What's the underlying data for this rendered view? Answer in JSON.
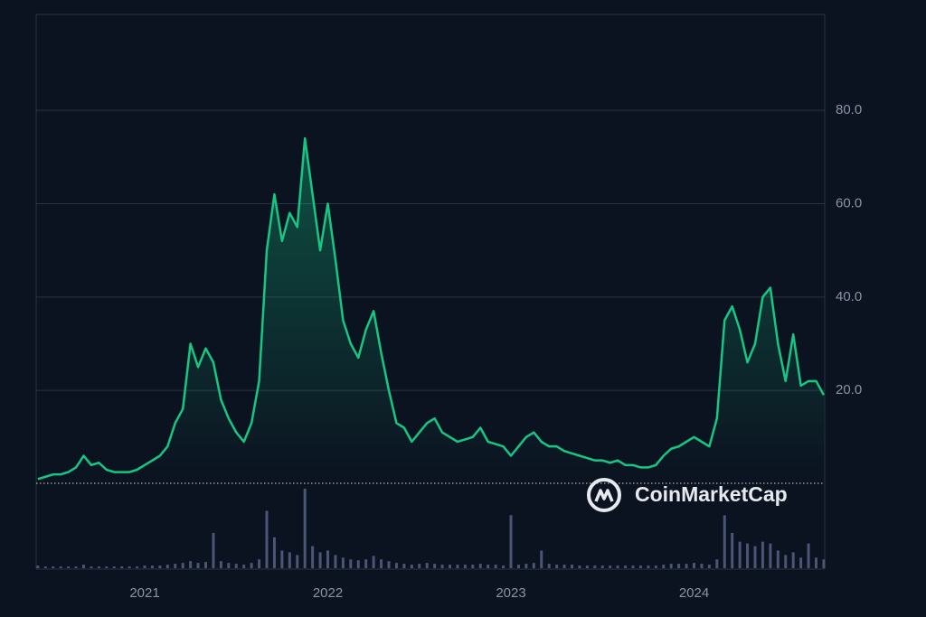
{
  "chart_data": {
    "type": "line",
    "watermark": "CoinMarketCap",
    "categories": [
      null,
      null,
      null,
      null,
      null,
      null,
      null,
      null,
      null,
      null,
      null,
      null,
      null,
      null,
      "2021",
      null,
      null,
      null,
      null,
      null,
      null,
      null,
      null,
      null,
      null,
      null,
      null,
      null,
      null,
      null,
      null,
      null,
      null,
      null,
      null,
      null,
      null,
      null,
      "2022",
      null,
      null,
      null,
      null,
      null,
      null,
      null,
      null,
      null,
      null,
      null,
      null,
      null,
      null,
      null,
      null,
      null,
      null,
      null,
      null,
      null,
      null,
      null,
      "2023",
      null,
      null,
      null,
      null,
      null,
      null,
      null,
      null,
      null,
      null,
      null,
      null,
      null,
      null,
      null,
      null,
      null,
      null,
      null,
      null,
      null,
      null,
      null,
      "2024",
      null,
      null,
      null,
      null,
      null,
      null,
      null,
      null,
      null,
      null,
      null,
      null,
      null,
      null,
      null,
      null,
      null
    ],
    "series": [
      {
        "color": "#16c784",
        "values": [
          1,
          1.5,
          2,
          2,
          2.5,
          3.5,
          6,
          4,
          4.5,
          3,
          2.5,
          2.5,
          2.5,
          3,
          4,
          5,
          6,
          8,
          13,
          16,
          30,
          25,
          29,
          26,
          18,
          14,
          11,
          9,
          13,
          22,
          50,
          62,
          52,
          58,
          55,
          74,
          62,
          50,
          60,
          48,
          35,
          30,
          27,
          33,
          37,
          28,
          20,
          13,
          12,
          9,
          11,
          13,
          14,
          11,
          10,
          9,
          9.5,
          10,
          12,
          9,
          8.5,
          8,
          6,
          8,
          10,
          11,
          9,
          8,
          8,
          7,
          6.5,
          6,
          5.5,
          5,
          5,
          4.5,
          5,
          4,
          4,
          3.5,
          3.5,
          4,
          6,
          7.5,
          8,
          9,
          10,
          9,
          8,
          14,
          35,
          38,
          33,
          26,
          30,
          40,
          42,
          30,
          22,
          32,
          21,
          22,
          22,
          19
        ]
      }
    ],
    "volume": [
      3,
      2,
      2,
      2,
      2,
      2,
      4,
      2,
      2,
      2,
      2,
      2,
      2,
      2,
      3,
      3,
      3,
      4,
      5,
      6,
      8,
      6,
      7,
      40,
      8,
      6,
      5,
      4,
      6,
      10,
      65,
      35,
      20,
      18,
      15,
      90,
      25,
      18,
      20,
      15,
      12,
      10,
      9,
      10,
      14,
      10,
      8,
      6,
      5,
      4,
      5,
      6,
      5,
      4,
      4,
      4,
      4,
      4,
      5,
      4,
      4,
      3,
      60,
      4,
      5,
      6,
      20,
      5,
      4,
      4,
      4,
      3,
      3,
      3,
      3,
      3,
      3,
      3,
      3,
      3,
      3,
      3,
      4,
      5,
      5,
      5,
      6,
      5,
      4,
      10,
      60,
      40,
      30,
      28,
      25,
      30,
      28,
      20,
      15,
      18,
      12,
      28,
      12,
      10
    ],
    "ylim": [
      0,
      100
    ],
    "yticks": [
      {
        "value": 20,
        "label": "20.0"
      },
      {
        "value": 40,
        "label": "40.0"
      },
      {
        "value": 60,
        "label": "60.0"
      },
      {
        "value": 80,
        "label": "80.0"
      }
    ],
    "grid": true
  }
}
